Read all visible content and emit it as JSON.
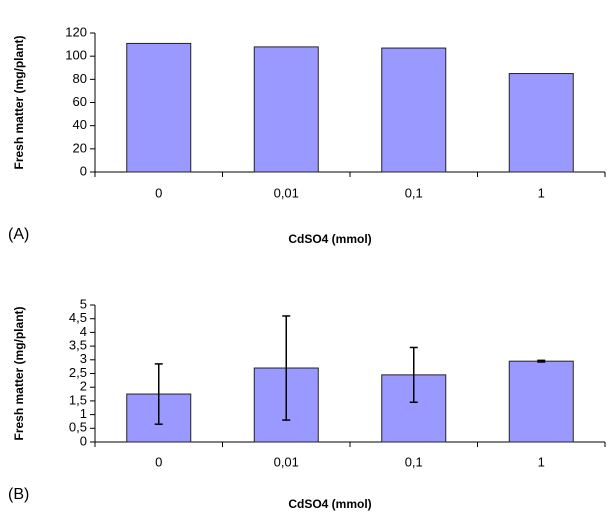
{
  "chart_data": [
    {
      "type": "bar",
      "panel_label": "(A)",
      "xlabel": "CdSO4 (mmol)",
      "ylabel": "Fresh matter (mg/plant)",
      "categories": [
        "0",
        "0,01",
        "0,1",
        "1"
      ],
      "values": [
        111,
        108,
        107,
        85
      ],
      "color": "#9999ff",
      "ylim": [
        0,
        120
      ],
      "yticks": [
        0,
        20,
        40,
        60,
        80,
        100,
        120
      ]
    },
    {
      "type": "bar",
      "panel_label": "(B)",
      "xlabel": "CdSO4 (mmol)",
      "ylabel": "Fresh matter (mg/plant)",
      "categories": [
        "0",
        "0,01",
        "0,1",
        "1"
      ],
      "values": [
        1.75,
        2.7,
        2.45,
        2.95
      ],
      "errors": [
        1.1,
        1.9,
        1.0,
        0.03
      ],
      "color": "#9999ff",
      "ylim": [
        0,
        5
      ],
      "yticks": [
        0,
        {
          "value": 0.5,
          "label": "0,5"
        },
        1,
        {
          "value": 1.5,
          "label": "1,5"
        },
        2,
        {
          "value": 2.5,
          "label": "2,5"
        },
        3,
        {
          "value": 3.5,
          "label": "3,5"
        },
        4,
        {
          "value": 4.5,
          "label": "4,5"
        },
        5
      ]
    }
  ]
}
